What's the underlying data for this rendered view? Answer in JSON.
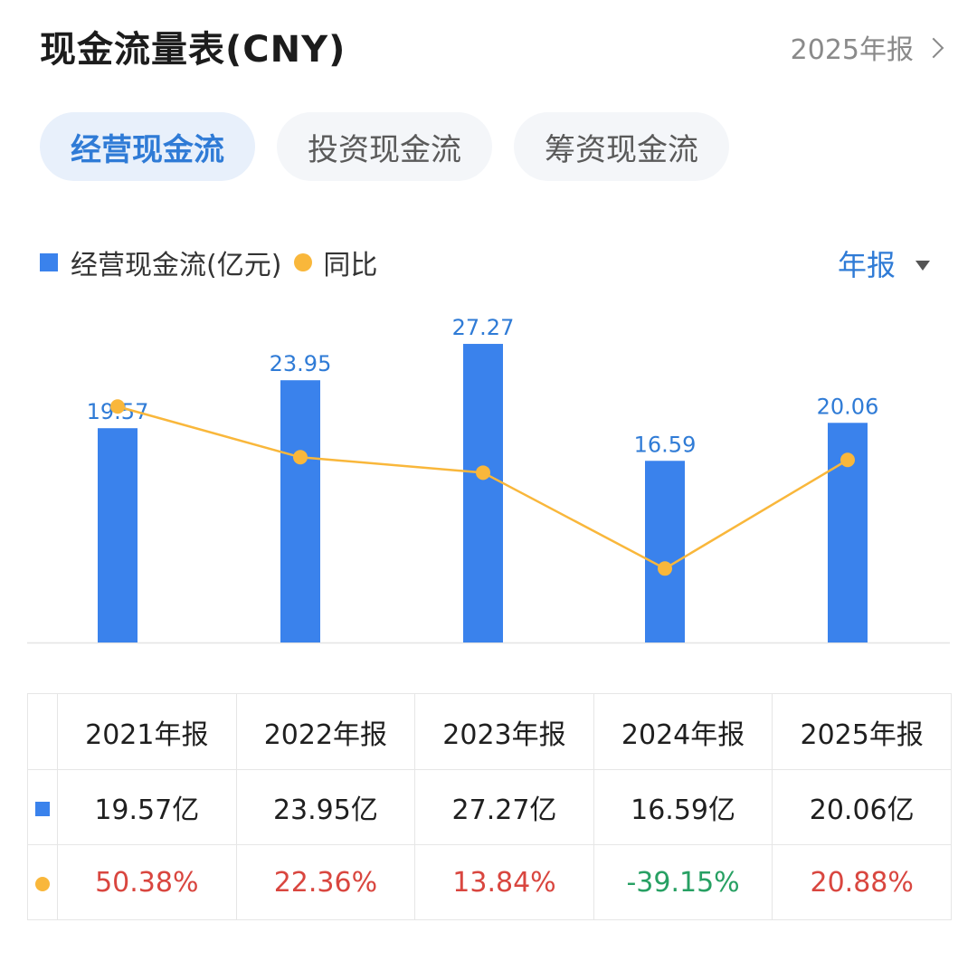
{
  "header": {
    "title": "现金流量表(CNY)",
    "period_link": "2025年报"
  },
  "tabs": [
    {
      "label": "经营现金流",
      "active": true
    },
    {
      "label": "投资现金流",
      "active": false
    },
    {
      "label": "筹资现金流",
      "active": false
    }
  ],
  "legend": {
    "bar_label": "经营现金流(亿元)",
    "line_label": "同比"
  },
  "period_select": {
    "label": "年报"
  },
  "colors": {
    "bar": "#3a82ec",
    "line": "#f9b73b",
    "accent": "#2f7bd6",
    "positive": "#d9463f",
    "negative": "#27a063"
  },
  "chart_data": {
    "type": "bar",
    "categories": [
      "2021年报",
      "2022年报",
      "2023年报",
      "2024年报",
      "2025年报"
    ],
    "series": [
      {
        "name": "经营现金流(亿元)",
        "type": "bar",
        "values": [
          19.57,
          23.95,
          27.27,
          16.59,
          20.06
        ]
      },
      {
        "name": "同比",
        "type": "line",
        "values": [
          50.38,
          22.36,
          13.84,
          -39.15,
          20.88
        ]
      }
    ],
    "bar_ylim": [
      0,
      30
    ],
    "line_ylim": [
      -80,
      90
    ],
    "data_labels": [
      "19.57",
      "23.95",
      "27.27",
      "16.59",
      "20.06"
    ]
  },
  "table": {
    "headers": [
      "2021年报",
      "2022年报",
      "2023年报",
      "2024年报",
      "2025年报"
    ],
    "amount_row": [
      "19.57亿",
      "23.95亿",
      "27.27亿",
      "16.59亿",
      "20.06亿"
    ],
    "yoy_row": [
      "50.38%",
      "22.36%",
      "13.84%",
      "-39.15%",
      "20.88%"
    ]
  }
}
